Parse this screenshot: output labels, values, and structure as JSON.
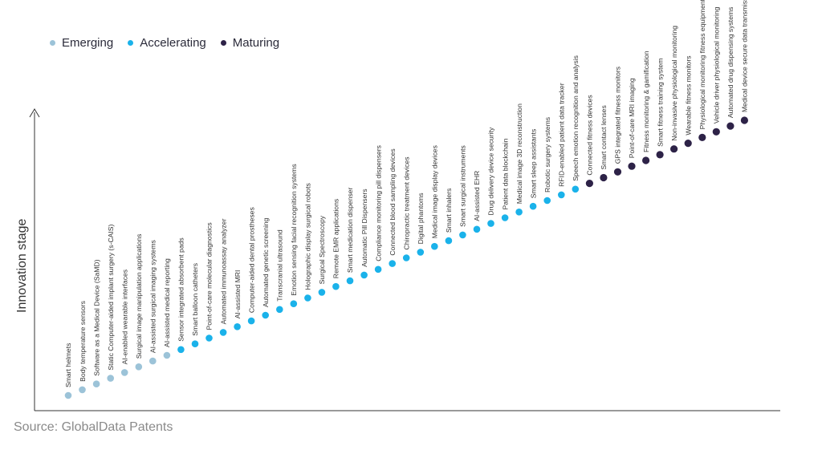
{
  "legend": [
    {
      "label": "Emerging",
      "color": "#9cc3d8"
    },
    {
      "label": "Accelerating",
      "color": "#1ab2ea"
    },
    {
      "label": "Maturing",
      "color": "#2d2247"
    }
  ],
  "source": "Source: GlobalData Patents",
  "chart_data": {
    "type": "scatter",
    "title": "",
    "ylabel": "Innovation stage",
    "xlabel": "",
    "grid": false,
    "legend_position": "top-left",
    "points": [
      {
        "label": "Smart helmets",
        "stage": "Emerging",
        "y": 1
      },
      {
        "label": "Body temperature sensors",
        "stage": "Emerging",
        "y": 2
      },
      {
        "label": "Software as a Medical Device (SaMD)",
        "stage": "Emerging",
        "y": 3
      },
      {
        "label": "Static Computer-aided implant surgery (s-CAIS)",
        "stage": "Emerging",
        "y": 4
      },
      {
        "label": "AI-enabled wearable interfaces",
        "stage": "Emerging",
        "y": 5
      },
      {
        "label": "Surgical image manipulation applications",
        "stage": "Emerging",
        "y": 6
      },
      {
        "label": "AI-assisted surgical imaging systems",
        "stage": "Emerging",
        "y": 7
      },
      {
        "label": "AI-assisted medical reporting",
        "stage": "Emerging",
        "y": 8
      },
      {
        "label": "Sensor integrated absorbent pads",
        "stage": "Accelerating",
        "y": 9
      },
      {
        "label": "Smart balloon catheters",
        "stage": "Accelerating",
        "y": 10
      },
      {
        "label": "Point-of-care molecular diagnostics",
        "stage": "Accelerating",
        "y": 11
      },
      {
        "label": "Automated immunoassay analyzer",
        "stage": "Accelerating",
        "y": 12
      },
      {
        "label": "AI-assisted MRI",
        "stage": "Accelerating",
        "y": 13
      },
      {
        "label": "Computer-aided dental prostheses",
        "stage": "Accelerating",
        "y": 14
      },
      {
        "label": "Automated genetic screening",
        "stage": "Accelerating",
        "y": 15
      },
      {
        "label": "Transcranial ultrasound",
        "stage": "Accelerating",
        "y": 16
      },
      {
        "label": "Emotion sensing facial recognition systems",
        "stage": "Accelerating",
        "y": 17
      },
      {
        "label": "Holographic display surgical robots",
        "stage": "Accelerating",
        "y": 18
      },
      {
        "label": "Surgical Spectroscopy",
        "stage": "Accelerating",
        "y": 19
      },
      {
        "label": "Remote EMR applications",
        "stage": "Accelerating",
        "y": 20
      },
      {
        "label": "Smart medication dispenser",
        "stage": "Accelerating",
        "y": 21
      },
      {
        "label": "Automatic Pill Dispensers",
        "stage": "Accelerating",
        "y": 22
      },
      {
        "label": "Compliance monitoring pill dispensers",
        "stage": "Accelerating",
        "y": 23
      },
      {
        "label": "Connected blood sampling devices",
        "stage": "Accelerating",
        "y": 24
      },
      {
        "label": "Chiropractic treatment devices",
        "stage": "Accelerating",
        "y": 25
      },
      {
        "label": "Digital phantoms",
        "stage": "Accelerating",
        "y": 26
      },
      {
        "label": "Medical image display devices",
        "stage": "Accelerating",
        "y": 27
      },
      {
        "label": "Smart inhalers",
        "stage": "Accelerating",
        "y": 28
      },
      {
        "label": "Smart surgical instruments",
        "stage": "Accelerating",
        "y": 29
      },
      {
        "label": "AI-assisted EHR",
        "stage": "Accelerating",
        "y": 30
      },
      {
        "label": "Drug delivery device security",
        "stage": "Accelerating",
        "y": 31
      },
      {
        "label": "Patient data blockchain",
        "stage": "Accelerating",
        "y": 32
      },
      {
        "label": "Medical image 3D reconstruction",
        "stage": "Accelerating",
        "y": 33
      },
      {
        "label": "Smart sleep assistants",
        "stage": "Accelerating",
        "y": 34
      },
      {
        "label": "Robotic surgery systems",
        "stage": "Accelerating",
        "y": 35
      },
      {
        "label": "RFID-enabled patient data tracker",
        "stage": "Accelerating",
        "y": 36
      },
      {
        "label": "Speech emotion recognition and analysis",
        "stage": "Accelerating",
        "y": 37
      },
      {
        "label": "Connected fitness devices",
        "stage": "Maturing",
        "y": 38
      },
      {
        "label": "Smart contact lenses",
        "stage": "Maturing",
        "y": 39
      },
      {
        "label": "GPS integrated fitness monitors",
        "stage": "Maturing",
        "y": 40
      },
      {
        "label": "Point-of-care MRI imaging",
        "stage": "Maturing",
        "y": 41
      },
      {
        "label": "Fitness monitoring & gamification",
        "stage": "Maturing",
        "y": 42
      },
      {
        "label": "Smart fitness training system",
        "stage": "Maturing",
        "y": 43
      },
      {
        "label": "Non-invasive physiological monitoring",
        "stage": "Maturing",
        "y": 44
      },
      {
        "label": "Wearable fitness monitors",
        "stage": "Maturing",
        "y": 45
      },
      {
        "label": "Physiological monitoring fitness equipments",
        "stage": "Maturing",
        "y": 46
      },
      {
        "label": "Vehicle driver physiological monitoring",
        "stage": "Maturing",
        "y": 47
      },
      {
        "label": "Automated drug dispensing systems",
        "stage": "Maturing",
        "y": 48
      },
      {
        "label": "Medical device secure data transmission",
        "stage": "Maturing",
        "y": 49
      }
    ]
  }
}
